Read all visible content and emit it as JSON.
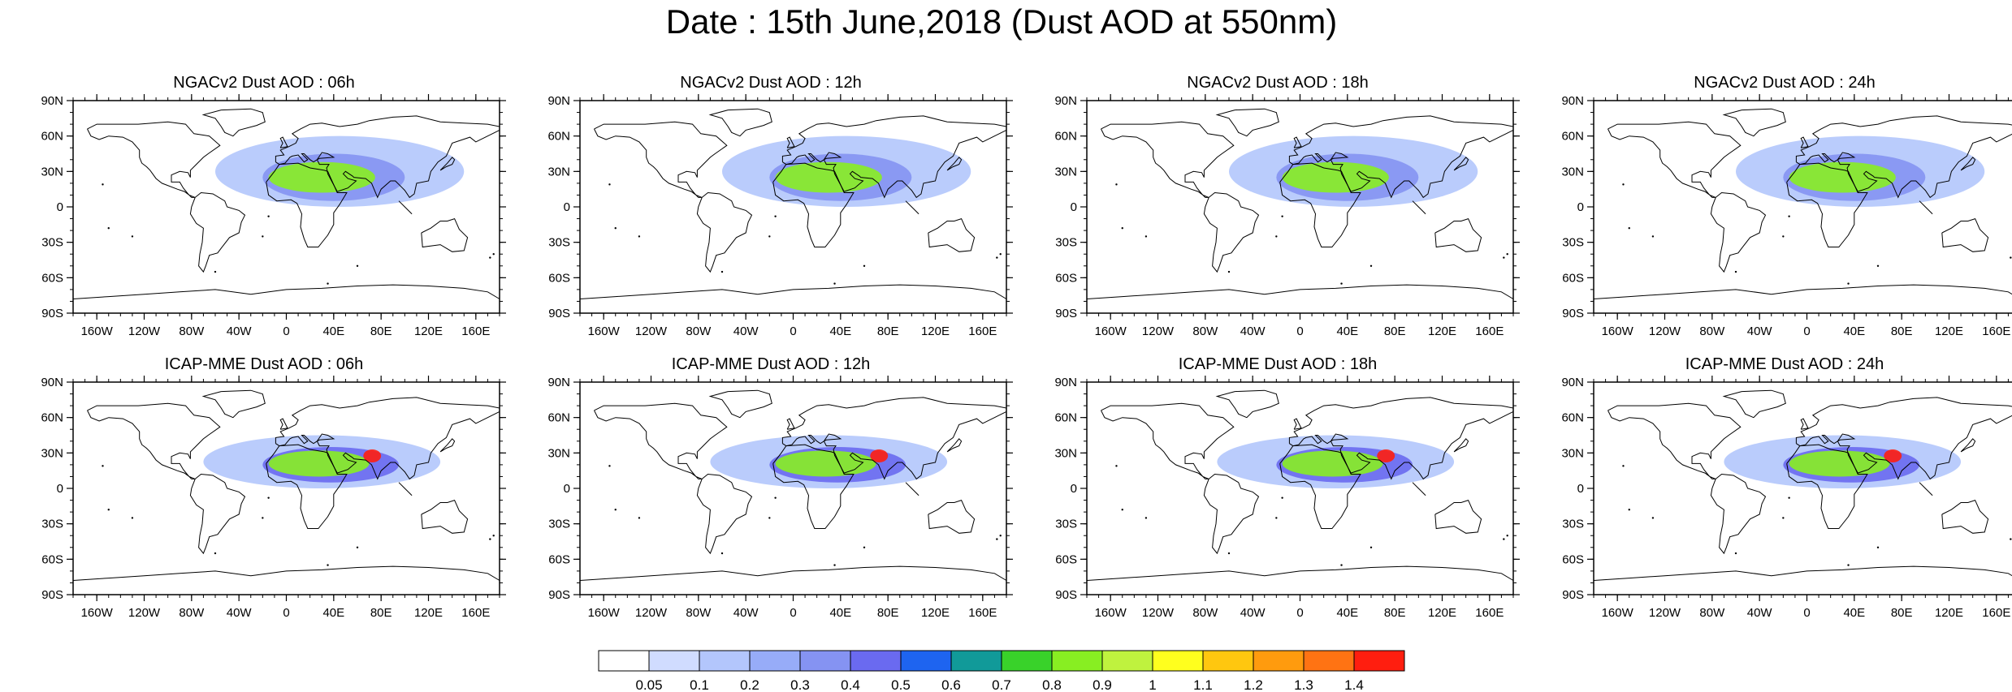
{
  "title": "Date : 15th June,2018 (Dust AOD at 550nm)",
  "chart_data": [
    {
      "type": "heatmap",
      "model": "NGACv2",
      "title": "NGACv2 Dust AOD : 06h",
      "xlim": [
        -180,
        180
      ],
      "ylim": [
        -90,
        90
      ],
      "x_ticks": [
        "160W",
        "120W",
        "80W",
        "40W",
        "0",
        "40E",
        "80E",
        "120E",
        "160E"
      ],
      "y_ticks": [
        "90N",
        "60N",
        "30N",
        "0",
        "30S",
        "60S",
        "90S"
      ],
      "dust_plumes": [
        {
          "lon": [
            -60,
            150
          ],
          "lat": [
            0,
            60
          ],
          "aod": 0.1
        },
        {
          "lon": [
            -20,
            100
          ],
          "lat": [
            5,
            45
          ],
          "aod": 0.35
        },
        {
          "lon": [
            -15,
            75
          ],
          "lat": [
            12,
            38
          ],
          "aod": 0.8
        }
      ]
    },
    {
      "type": "heatmap",
      "model": "NGACv2",
      "title": "NGACv2 Dust AOD : 12h",
      "xlim": [
        -180,
        180
      ],
      "ylim": [
        -90,
        90
      ],
      "x_ticks": [
        "160W",
        "120W",
        "80W",
        "40W",
        "0",
        "40E",
        "80E",
        "120E",
        "160E"
      ],
      "y_ticks": [
        "90N",
        "60N",
        "30N",
        "0",
        "30S",
        "60S",
        "90S"
      ],
      "dust_plumes": [
        {
          "lon": [
            -60,
            150
          ],
          "lat": [
            0,
            60
          ],
          "aod": 0.1
        },
        {
          "lon": [
            -20,
            100
          ],
          "lat": [
            5,
            45
          ],
          "aod": 0.35
        },
        {
          "lon": [
            -15,
            75
          ],
          "lat": [
            12,
            38
          ],
          "aod": 0.8
        }
      ]
    },
    {
      "type": "heatmap",
      "model": "NGACv2",
      "title": "NGACv2 Dust AOD : 18h",
      "xlim": [
        -180,
        180
      ],
      "ylim": [
        -90,
        90
      ],
      "x_ticks": [
        "160W",
        "120W",
        "80W",
        "40W",
        "0",
        "40E",
        "80E",
        "120E",
        "160E"
      ],
      "y_ticks": [
        "90N",
        "60N",
        "30N",
        "0",
        "30S",
        "60S",
        "90S"
      ],
      "dust_plumes": [
        {
          "lon": [
            -60,
            150
          ],
          "lat": [
            0,
            60
          ],
          "aod": 0.1
        },
        {
          "lon": [
            -20,
            100
          ],
          "lat": [
            5,
            45
          ],
          "aod": 0.35
        },
        {
          "lon": [
            -15,
            75
          ],
          "lat": [
            12,
            38
          ],
          "aod": 0.8
        }
      ]
    },
    {
      "type": "heatmap",
      "model": "NGACv2",
      "title": "NGACv2 Dust AOD : 24h",
      "xlim": [
        -180,
        180
      ],
      "ylim": [
        -90,
        90
      ],
      "x_ticks": [
        "160W",
        "120W",
        "80W",
        "40W",
        "0",
        "40E",
        "80E",
        "120E",
        "160E"
      ],
      "y_ticks": [
        "90N",
        "60N",
        "30N",
        "0",
        "30S",
        "60S",
        "90S"
      ],
      "dust_plumes": [
        {
          "lon": [
            -60,
            150
          ],
          "lat": [
            0,
            60
          ],
          "aod": 0.1
        },
        {
          "lon": [
            -20,
            100
          ],
          "lat": [
            5,
            45
          ],
          "aod": 0.35
        },
        {
          "lon": [
            -15,
            75
          ],
          "lat": [
            12,
            38
          ],
          "aod": 0.8
        }
      ]
    },
    {
      "type": "heatmap",
      "model": "ICAP-MME",
      "title": "ICAP-MME Dust AOD : 06h",
      "xlim": [
        -180,
        180
      ],
      "ylim": [
        -90,
        90
      ],
      "x_ticks": [
        "160W",
        "120W",
        "80W",
        "40W",
        "0",
        "40E",
        "80E",
        "120E",
        "160E"
      ],
      "y_ticks": [
        "90N",
        "60N",
        "30N",
        "0",
        "30S",
        "60S",
        "90S"
      ],
      "dust_plumes": [
        {
          "lon": [
            -70,
            130
          ],
          "lat": [
            0,
            45
          ],
          "aod": 0.15
        },
        {
          "lon": [
            -20,
            95
          ],
          "lat": [
            5,
            35
          ],
          "aod": 0.45
        },
        {
          "lon": [
            -15,
            70
          ],
          "lat": [
            10,
            32
          ],
          "aod": 0.8
        },
        {
          "lon": [
            65,
            80
          ],
          "lat": [
            22,
            33
          ],
          "aod": 1.4
        }
      ]
    },
    {
      "type": "heatmap",
      "model": "ICAP-MME",
      "title": "ICAP-MME Dust AOD : 12h",
      "xlim": [
        -180,
        180
      ],
      "ylim": [
        -90,
        90
      ],
      "x_ticks": [
        "160W",
        "120W",
        "80W",
        "40W",
        "0",
        "40E",
        "80E",
        "120E",
        "160E"
      ],
      "y_ticks": [
        "90N",
        "60N",
        "30N",
        "0",
        "30S",
        "60S",
        "90S"
      ],
      "dust_plumes": [
        {
          "lon": [
            -70,
            130
          ],
          "lat": [
            0,
            45
          ],
          "aod": 0.15
        },
        {
          "lon": [
            -20,
            95
          ],
          "lat": [
            5,
            35
          ],
          "aod": 0.45
        },
        {
          "lon": [
            -15,
            70
          ],
          "lat": [
            10,
            32
          ],
          "aod": 0.8
        },
        {
          "lon": [
            65,
            80
          ],
          "lat": [
            22,
            33
          ],
          "aod": 1.4
        }
      ]
    },
    {
      "type": "heatmap",
      "model": "ICAP-MME",
      "title": "ICAP-MME Dust AOD : 18h",
      "xlim": [
        -180,
        180
      ],
      "ylim": [
        -90,
        90
      ],
      "x_ticks": [
        "160W",
        "120W",
        "80W",
        "40W",
        "0",
        "40E",
        "80E",
        "120E",
        "160E"
      ],
      "y_ticks": [
        "90N",
        "60N",
        "30N",
        "0",
        "30S",
        "60S",
        "90S"
      ],
      "dust_plumes": [
        {
          "lon": [
            -70,
            130
          ],
          "lat": [
            0,
            45
          ],
          "aod": 0.15
        },
        {
          "lon": [
            -20,
            95
          ],
          "lat": [
            5,
            35
          ],
          "aod": 0.45
        },
        {
          "lon": [
            -15,
            70
          ],
          "lat": [
            10,
            32
          ],
          "aod": 0.8
        },
        {
          "lon": [
            65,
            80
          ],
          "lat": [
            22,
            33
          ],
          "aod": 1.4
        }
      ]
    },
    {
      "type": "heatmap",
      "model": "ICAP-MME",
      "title": "ICAP-MME Dust AOD : 24h",
      "xlim": [
        -180,
        180
      ],
      "ylim": [
        -90,
        90
      ],
      "x_ticks": [
        "160W",
        "120W",
        "80W",
        "40W",
        "0",
        "40E",
        "80E",
        "120E",
        "160E"
      ],
      "y_ticks": [
        "90N",
        "60N",
        "30N",
        "0",
        "30S",
        "60S",
        "90S"
      ],
      "dust_plumes": [
        {
          "lon": [
            -70,
            130
          ],
          "lat": [
            0,
            45
          ],
          "aod": 0.15
        },
        {
          "lon": [
            -20,
            95
          ],
          "lat": [
            5,
            35
          ],
          "aod": 0.45
        },
        {
          "lon": [
            -15,
            70
          ],
          "lat": [
            10,
            32
          ],
          "aod": 0.8
        },
        {
          "lon": [
            65,
            80
          ],
          "lat": [
            22,
            33
          ],
          "aod": 1.4
        }
      ]
    }
  ],
  "colorbar": {
    "labels": [
      "0.05",
      "0.1",
      "0.2",
      "0.3",
      "0.4",
      "0.5",
      "0.6",
      "0.7",
      "0.8",
      "0.9",
      "1",
      "1.1",
      "1.2",
      "1.3",
      "1.4"
    ],
    "levels": [
      0.05,
      0.1,
      0.2,
      0.3,
      0.4,
      0.5,
      0.6,
      0.7,
      0.8,
      0.9,
      1.0,
      1.1,
      1.2,
      1.3,
      1.4
    ],
    "colors": [
      "#ffffff",
      "#d0dcff",
      "#b3c6fc",
      "#97acf8",
      "#8593f2",
      "#6a6af0",
      "#1e64f0",
      "#119a99",
      "#39d22a",
      "#88ee22",
      "#bff23e",
      "#ffff1e",
      "#ffc70f",
      "#ff9b0e",
      "#ff7313",
      "#ff1e0f"
    ]
  }
}
